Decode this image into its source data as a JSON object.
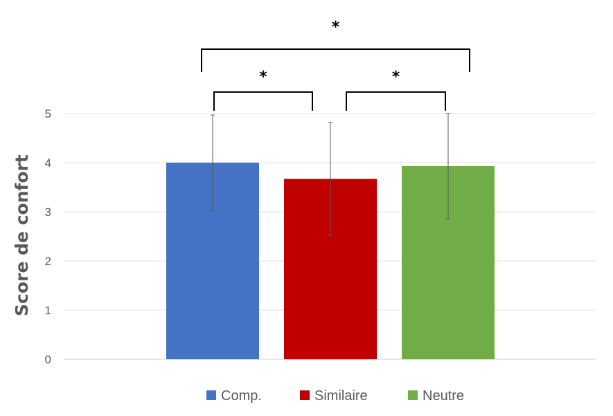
{
  "chart_data": {
    "type": "bar",
    "title": "",
    "xlabel": "",
    "ylabel": "Score de confort",
    "ylim": [
      0,
      5
    ],
    "yticks": [
      "0",
      "1",
      "2",
      "3",
      "4",
      "5"
    ],
    "grid": true,
    "legend_position": "bottom",
    "categories": [
      "Comp.",
      "Similaire",
      "Neutre"
    ],
    "values": [
      4.0,
      3.67,
      3.93
    ],
    "error": [
      0.97,
      1.15,
      1.07
    ],
    "colors": [
      "#4472C4",
      "#C00000",
      "#70AD47"
    ],
    "significance": [
      {
        "from": 0,
        "to": 1,
        "label": "*"
      },
      {
        "from": 1,
        "to": 2,
        "label": "*"
      },
      {
        "from": 0,
        "to": 2,
        "label": "*"
      }
    ]
  }
}
